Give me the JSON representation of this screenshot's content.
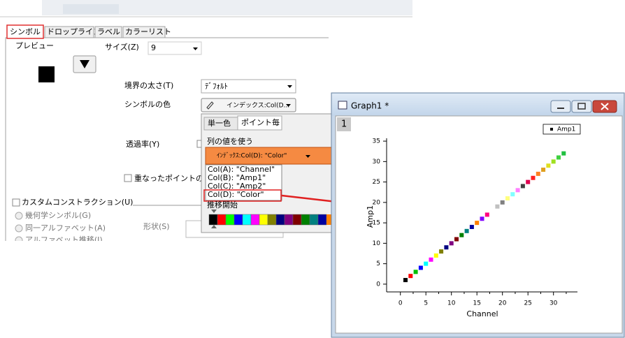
{
  "dialog": {
    "tabs": [
      "シンボル",
      "ドロップライン",
      "ラベル",
      "カラーリスト"
    ],
    "preview_label": "プレビュー",
    "size_label": "サイズ(Z)",
    "size_value": "9",
    "border_label": "境界の太さ(T)",
    "border_value": "ﾃﾞﾌｫﾙﾄ",
    "color_label": "シンボルの色",
    "color_value": "インデックス:Col(D...",
    "transparency_label": "透過率(Y)",
    "overlap_label": "重なったポイントのず",
    "custom_label": "カスタムコンストラクション(U)",
    "radio": [
      "幾何学シンボル(G)",
      "同一アルファベット(A)",
      "アルファベット推移(I)"
    ],
    "shape_label": "形状(S)"
  },
  "color_popup": {
    "tabs": [
      "単一色",
      "ポイント毎"
    ],
    "use_column": "列の値を使う",
    "selected": "ｲﾝﾃﾞｯｸｽ:Col(D): \"Color\"",
    "options": [
      "Col(A):  \"Channel\"",
      "Col(B):  \"Amp1\"",
      "Col(C):  \"Amp2\"",
      "Col(D):  \"Color\""
    ],
    "increment_label": "推移開始",
    "palette": [
      "#000000",
      "#ff0000",
      "#00ff00",
      "#0000ff",
      "#00ffff",
      "#ff00ff",
      "#ffff00",
      "#808000",
      "#000080",
      "#800080",
      "#800000",
      "#008000",
      "#008080",
      "#0000a0",
      "#ff8000"
    ]
  },
  "window": {
    "title": "Graph1 *",
    "layer": "1"
  },
  "chart_data": {
    "type": "scatter",
    "xlabel": "Channel",
    "ylabel": "Amp1",
    "x": [
      1,
      2,
      3,
      4,
      5,
      6,
      7,
      8,
      9,
      10,
      11,
      12,
      13,
      14,
      15,
      16,
      17,
      18,
      19,
      20,
      21,
      22,
      23,
      24,
      25,
      26,
      27,
      28,
      29,
      30,
      31,
      32
    ],
    "series": [
      {
        "name": "Amp1",
        "color": "#000000",
        "values": [
          1,
          2,
          3,
          4,
          5,
          6,
          7,
          8,
          9,
          10,
          11,
          12,
          13,
          14,
          15,
          16,
          17,
          18,
          19,
          20,
          21,
          22,
          23,
          24,
          25,
          26,
          27,
          28,
          29,
          30,
          31,
          32
        ],
        "colors": [
          "#000000",
          "#ff0000",
          "#00c000",
          "#0000ff",
          "#00ffff",
          "#ff00ff",
          "#ffff00",
          "#808000",
          "#000080",
          "#800080",
          "#800000",
          "#008000",
          "#008080",
          "#0000a0",
          "#ff8000",
          "#8000ff",
          "#ff0080",
          "#ffffff",
          "#c0c0c0",
          "#808080",
          "#ffff80",
          "#80ffff",
          "#ff80ff",
          "#404040",
          "#e00050",
          "#ff2020",
          "#ff8020",
          "#e0a020",
          "#e0e020",
          "#a0e020",
          "#40d040",
          "#20c040"
        ]
      }
    ],
    "xlim": [
      -2.7,
      34.7
    ],
    "ylim": [
      -1.9,
      35.7
    ],
    "xticks": [
      0,
      5,
      10,
      15,
      20,
      25,
      30
    ],
    "yticks": [
      0,
      5,
      10,
      15,
      20,
      25,
      30,
      35
    ]
  }
}
